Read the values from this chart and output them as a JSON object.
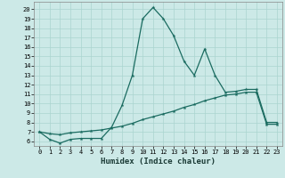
{
  "title": "",
  "xlabel": "Humidex (Indice chaleur)",
  "background_color": "#cce9e7",
  "grid_color": "#aad4d0",
  "line_color": "#1a6b60",
  "x_values": [
    0,
    1,
    2,
    3,
    4,
    5,
    6,
    7,
    8,
    9,
    10,
    11,
    12,
    13,
    14,
    15,
    16,
    17,
    18,
    19,
    20,
    21,
    22,
    23
  ],
  "line1_y": [
    7.0,
    6.2,
    5.8,
    6.2,
    6.3,
    6.3,
    6.3,
    7.5,
    9.8,
    13.0,
    19.0,
    20.2,
    19.0,
    17.2,
    14.5,
    13.0,
    15.8,
    13.0,
    11.2,
    11.3,
    11.5,
    11.5,
    8.0,
    8.0
  ],
  "line2_y": [
    7.0,
    6.8,
    6.7,
    6.9,
    7.0,
    7.1,
    7.2,
    7.4,
    7.6,
    7.9,
    8.3,
    8.6,
    8.9,
    9.2,
    9.6,
    9.9,
    10.3,
    10.6,
    10.9,
    11.0,
    11.2,
    11.2,
    7.8,
    7.8
  ],
  "ylim": [
    5.5,
    20.8
  ],
  "xlim": [
    -0.5,
    23.5
  ],
  "yticks": [
    6,
    7,
    8,
    9,
    10,
    11,
    12,
    13,
    14,
    15,
    16,
    17,
    18,
    19,
    20
  ],
  "xticks": [
    0,
    1,
    2,
    3,
    4,
    5,
    6,
    7,
    8,
    9,
    10,
    11,
    12,
    13,
    14,
    15,
    16,
    17,
    18,
    19,
    20,
    21,
    22,
    23
  ],
  "label_fontsize": 6.5,
  "tick_fontsize": 5.0
}
